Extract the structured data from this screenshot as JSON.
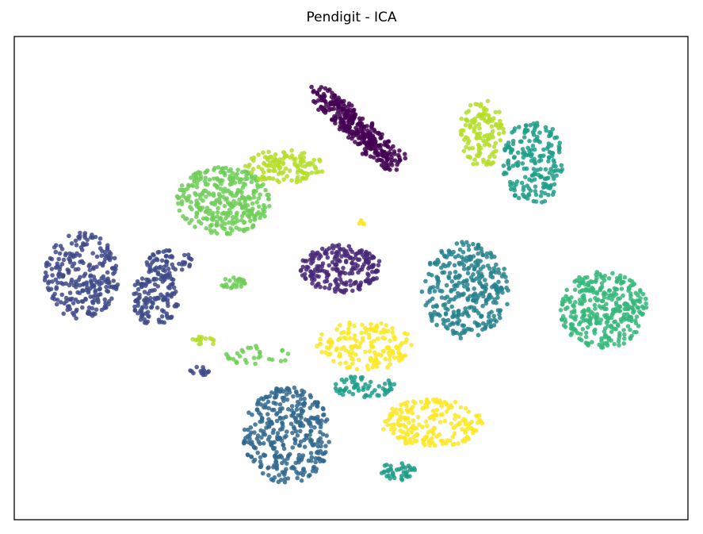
{
  "chart_data": {
    "type": "scatter",
    "title": "Pendigit - ICA",
    "xlabel": "",
    "ylabel": "",
    "axes_ticks": false,
    "xlim": [
      0,
      100
    ],
    "ylim": [
      0,
      100
    ],
    "series": [
      {
        "name": "cluster-0",
        "color": "#440154",
        "clusters": [
          {
            "cx": 51,
            "cy": 81,
            "rx": 6,
            "ry": 8,
            "n": 340,
            "shape": "diag"
          }
        ]
      },
      {
        "name": "cluster-1",
        "color": "#482878",
        "clusters": [
          {
            "cx": 48.5,
            "cy": 52,
            "rx": 6,
            "ry": 5,
            "n": 220
          }
        ]
      },
      {
        "name": "cluster-2",
        "color": "#3e4a89",
        "clusters": [
          {
            "cx": 10,
            "cy": 50.5,
            "rx": 5.5,
            "ry": 9,
            "n": 260
          },
          {
            "cx": 21,
            "cy": 46,
            "rx": 3.5,
            "ry": 6,
            "n": 140
          },
          {
            "cx": 23,
            "cy": 53.5,
            "rx": 3.5,
            "ry": 2.5,
            "n": 50
          },
          {
            "cx": 27.5,
            "cy": 30.5,
            "rx": 1.5,
            "ry": 1.2,
            "n": 14
          }
        ]
      },
      {
        "name": "cluster-3",
        "color": "#31688e",
        "clusters": [
          {
            "cx": 40.5,
            "cy": 17.5,
            "rx": 6.5,
            "ry": 10,
            "n": 360
          }
        ]
      },
      {
        "name": "cluster-4",
        "color": "#26828e",
        "clusters": [
          {
            "cx": 67,
            "cy": 47.5,
            "rx": 6.5,
            "ry": 10,
            "n": 330
          }
        ]
      },
      {
        "name": "cluster-5",
        "color": "#1f9e89",
        "clusters": [
          {
            "cx": 77,
            "cy": 74,
            "rx": 4.5,
            "ry": 9,
            "n": 200
          },
          {
            "cx": 52,
            "cy": 27.5,
            "rx": 4.5,
            "ry": 2.5,
            "n": 60
          },
          {
            "cx": 57,
            "cy": 10,
            "rx": 2.5,
            "ry": 2,
            "n": 40
          }
        ]
      },
      {
        "name": "cluster-6",
        "color": "#35b779",
        "clusters": [
          {
            "cx": 87.5,
            "cy": 43.5,
            "rx": 6.5,
            "ry": 8,
            "n": 330
          }
        ]
      },
      {
        "name": "cluster-7",
        "color": "#6ece58",
        "clusters": [
          {
            "cx": 31,
            "cy": 66,
            "rx": 7,
            "ry": 7,
            "n": 320
          },
          {
            "cx": 36,
            "cy": 34,
            "rx": 5,
            "ry": 2,
            "n": 30
          },
          {
            "cx": 32.5,
            "cy": 49,
            "rx": 2,
            "ry": 1.2,
            "n": 25
          }
        ]
      },
      {
        "name": "cluster-8",
        "color": "#b5de2b",
        "clusters": [
          {
            "cx": 40,
            "cy": 73,
            "rx": 6,
            "ry": 3.5,
            "n": 130
          },
          {
            "cx": 69.5,
            "cy": 80,
            "rx": 3.5,
            "ry": 7,
            "n": 130
          },
          {
            "cx": 28,
            "cy": 37,
            "rx": 1.8,
            "ry": 1.2,
            "n": 16
          }
        ]
      },
      {
        "name": "cluster-9",
        "color": "#fde725",
        "clusters": [
          {
            "cx": 52,
            "cy": 36,
            "rx": 7.5,
            "ry": 5,
            "n": 160
          },
          {
            "cx": 62,
            "cy": 20,
            "rx": 7.5,
            "ry": 5,
            "n": 190
          },
          {
            "cx": 51.5,
            "cy": 61.5,
            "rx": 0.6,
            "ry": 0.6,
            "n": 6
          }
        ]
      }
    ]
  }
}
